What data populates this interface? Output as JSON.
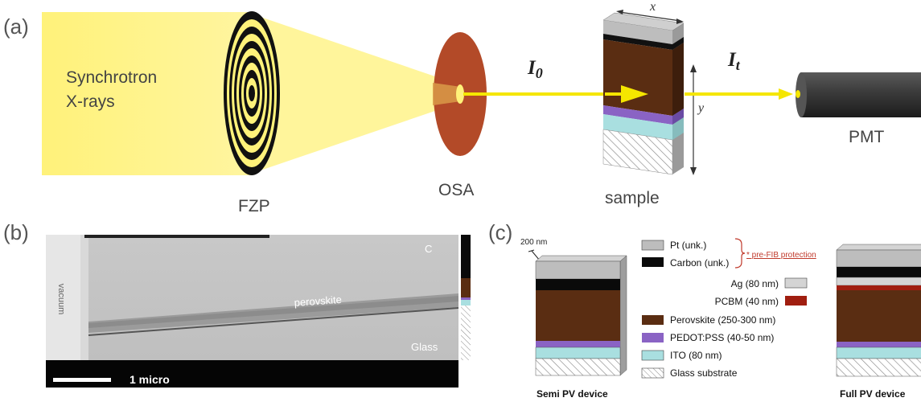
{
  "panel_a": {
    "label": "(a)",
    "source_label_line1": "Synchrotron",
    "source_label_line2": "X-rays",
    "fzp_label": "FZP",
    "osa_label": "OSA",
    "sample_label": "sample",
    "pmt_label": "PMT",
    "incident_beam_label": "I",
    "incident_beam_sub": "0",
    "transmitted_beam_label": "I",
    "transmitted_beam_sub": "t",
    "x_axis_label": "x",
    "y_axis_label": "y"
  },
  "panel_b": {
    "label": "(b)",
    "vacuum_label": "vacuum",
    "c_label": "C",
    "perovskite_label": "perovskite",
    "glass_label": "Glass",
    "scale_label": "1 micro"
  },
  "panel_c": {
    "label": "(c)",
    "scale_label": "200 nm",
    "legend_pt": "Pt (unk.)",
    "legend_carbon": "Carbon (unk.)",
    "legend_ag": "Ag (80 nm)",
    "legend_pcbm": "PCBM (40 nm)",
    "legend_perovskite": "Perovskite (250-300 nm)",
    "legend_pedot": "PEDOT:PSS (40-50 nm)",
    "legend_ito": "ITO (80 nm)",
    "legend_glass": "Glass substrate",
    "pre_fib_label": "* pre-FIB protection",
    "semi_caption": "Semi PV device",
    "full_caption": "Full PV device"
  },
  "colors": {
    "beam_yellow": "#fff27a",
    "beam_light": "#fff7a6",
    "osa": "#b34a28",
    "pt": "#bdbdbd",
    "carbon": "#0a0a0a",
    "perovskite": "#5a2d12",
    "pedot": "#8a63c4",
    "ito": "#a9dfe0",
    "ag": "#d4d4d4",
    "pcbm": "#a01e10",
    "annotation_red": "#c0392b"
  }
}
